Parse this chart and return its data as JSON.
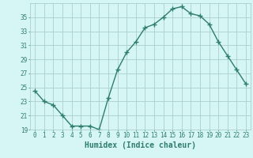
{
  "x": [
    0,
    1,
    2,
    3,
    4,
    5,
    6,
    7,
    8,
    9,
    10,
    11,
    12,
    13,
    14,
    15,
    16,
    17,
    18,
    19,
    20,
    21,
    22,
    23
  ],
  "y": [
    24.5,
    23.0,
    22.5,
    21.0,
    19.5,
    19.5,
    19.5,
    19.0,
    23.5,
    27.5,
    30.0,
    31.5,
    33.5,
    34.0,
    35.0,
    36.2,
    36.5,
    35.5,
    35.2,
    34.0,
    31.5,
    29.5,
    27.5,
    25.5
  ],
  "xlabel": "Humidex (Indice chaleur)",
  "line_color": "#2e7d6e",
  "marker": "+",
  "bg_color": "#d6f5f5",
  "grid_color": "#aacfcf",
  "ylim": [
    19,
    37
  ],
  "yticks": [
    19,
    21,
    23,
    25,
    27,
    29,
    31,
    33,
    35
  ],
  "xticks": [
    0,
    1,
    2,
    3,
    4,
    5,
    6,
    7,
    8,
    9,
    10,
    11,
    12,
    13,
    14,
    15,
    16,
    17,
    18,
    19,
    20,
    21,
    22,
    23
  ],
  "tick_fontsize": 5.5,
  "xlabel_fontsize": 7,
  "linewidth": 1.0,
  "markersize": 4
}
